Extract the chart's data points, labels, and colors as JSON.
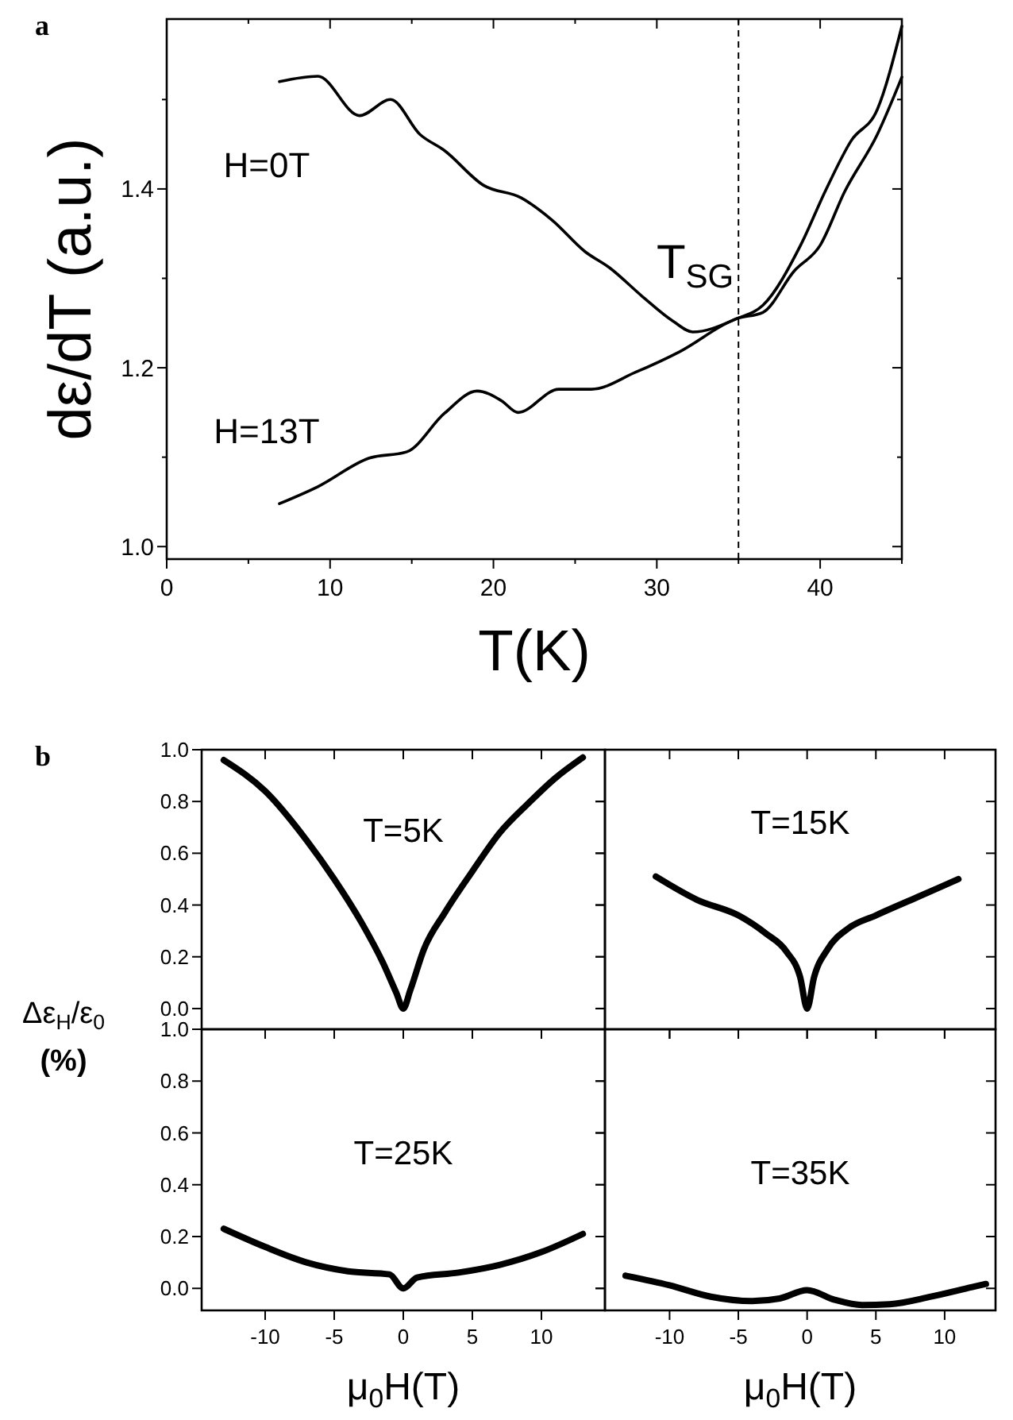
{
  "chart_data": [
    {
      "type": "line",
      "title": "a",
      "xlabel": "T(K)",
      "ylabel": "dε/dT (a.u.)",
      "xlim": [
        0,
        45
      ],
      "ylim": [
        0.986,
        1.59
      ],
      "xticks": [
        0,
        {
          "value": 5,
          "label": null
        },
        10,
        {
          "value": 15,
          "label": null
        },
        20,
        {
          "value": 25,
          "label": null
        },
        30,
        {
          "value": 35,
          "label": null
        },
        40,
        {
          "value": 45,
          "label": null
        }
      ],
      "yticks": [
        {
          "value": 1.0,
          "label": "1.0"
        },
        {
          "value": 1.1,
          "label": null
        },
        {
          "value": 1.2,
          "label": "1.2"
        },
        {
          "value": 1.3,
          "label": null
        },
        {
          "value": 1.4,
          "label": "1.4"
        },
        {
          "value": 1.5,
          "label": null
        }
      ],
      "grid": false,
      "line_style": "solid",
      "marker": "none",
      "ref_lines": [
        {
          "axis": "x",
          "value": 35,
          "label": "T$_{SG}$",
          "line_style": "dashed",
          "color": "#000000"
        }
      ],
      "series": [
        {
          "name": "H=0T",
          "color": "#000000",
          "x": [
            6.9,
            9.25,
            11.8,
            13.7,
            15.5,
            17,
            19.4,
            21.7,
            23.6,
            25.6,
            27.1,
            29.1,
            31,
            32.2,
            34.9,
            36.5,
            38.8,
            40.3,
            41.9,
            43.5,
            45
          ],
          "values": [
            1.52,
            1.526,
            1.482,
            1.5,
            1.461,
            1.443,
            1.404,
            1.39,
            1.365,
            1.33,
            1.312,
            1.28,
            1.252,
            1.24,
            1.255,
            1.27,
            1.337,
            1.397,
            1.454,
            1.489,
            1.582
          ]
        },
        {
          "name": "H=13T",
          "color": "#000000",
          "x": [
            6.9,
            9.25,
            12.4,
            14.7,
            17,
            19,
            20.5,
            21.5,
            24,
            26,
            28.7,
            31.4,
            34.9,
            36.5,
            38.4,
            40,
            41.5,
            43.5,
            45
          ],
          "values": [
            1.048,
            1.067,
            1.099,
            1.106,
            1.149,
            1.174,
            1.163,
            1.15,
            1.176,
            1.176,
            1.195,
            1.218,
            1.255,
            1.262,
            1.308,
            1.337,
            1.397,
            1.461,
            1.525
          ]
        }
      ]
    },
    {
      "type": "line",
      "title": "b",
      "ylabel": "Δε$_{H}$/ε$_{0}$ (%)",
      "annotations": [
        "T=5K"
      ],
      "xlim": [
        -14.6,
        14.6
      ],
      "ylim": [
        -0.08,
        1.0
      ],
      "tick_labels": "y",
      "xticks": [
        -10,
        -5,
        0,
        5,
        10
      ],
      "yticks": [
        {
          "value": 0,
          "label": "0.0"
        },
        0.2,
        0.4,
        0.6,
        0.8,
        {
          "value": 1,
          "label": "1.0"
        }
      ],
      "grid": false,
      "marker": "none",
      "series": [
        {
          "color": "#000000",
          "x": [
            -13,
            -10,
            -7,
            -5,
            -3,
            -1.5,
            -0.5,
            0,
            0.5,
            1.5,
            3,
            5,
            7,
            9,
            11,
            13
          ],
          "values": [
            0.96,
            0.84,
            0.65,
            0.5,
            0.33,
            0.18,
            0.06,
            0,
            0.07,
            0.23,
            0.37,
            0.53,
            0.68,
            0.79,
            0.89,
            0.97
          ]
        }
      ]
    },
    {
      "type": "line",
      "annotations": [
        "T=15K"
      ],
      "xlim": [
        -14.7,
        13.7
      ],
      "ylim": [
        -0.08,
        1.0
      ],
      "tick_labels": false,
      "xticks": [
        -10,
        -5,
        0,
        5,
        10
      ],
      "yticks": [
        0,
        0.2,
        0.4,
        0.6,
        0.8,
        1
      ],
      "grid": false,
      "marker": "none",
      "series": [
        {
          "color": "#000000",
          "x": [
            -11,
            -8,
            -5,
            -3,
            -1.5,
            -0.5,
            0,
            0.5,
            1.5,
            3,
            5,
            8,
            11
          ],
          "values": [
            0.51,
            0.42,
            0.36,
            0.29,
            0.22,
            0.12,
            0,
            0.12,
            0.23,
            0.31,
            0.36,
            0.43,
            0.5
          ]
        }
      ]
    },
    {
      "type": "line",
      "xlabel": "μ$_{0}$H(T)",
      "annotations": [
        "T=25K"
      ],
      "xlim": [
        -14.6,
        14.6
      ],
      "ylim": [
        -0.085,
        1.0
      ],
      "xticks": [
        -10,
        -5,
        0,
        5,
        10
      ],
      "yticks": [
        {
          "value": 0,
          "label": "0.0"
        },
        0.2,
        0.4,
        0.6,
        0.8,
        {
          "value": 1,
          "label": "1.0"
        }
      ],
      "grid": false,
      "marker": "none",
      "series": [
        {
          "color": "#000000",
          "x": [
            -13,
            -10,
            -7,
            -4,
            -1,
            0,
            1,
            4,
            7,
            10,
            13
          ],
          "values": [
            0.23,
            0.16,
            0.1,
            0.066,
            0.054,
            0,
            0.042,
            0.061,
            0.091,
            0.14,
            0.21
          ]
        }
      ]
    },
    {
      "type": "line",
      "xlabel": "μ$_{0}$H(T)",
      "annotations": [
        "T=35K"
      ],
      "xlim": [
        -14.7,
        13.7
      ],
      "ylim": [
        -0.085,
        1.0
      ],
      "tick_labels": "x",
      "xticks": [
        -10,
        -5,
        0,
        5,
        10
      ],
      "yticks": [
        0,
        0.2,
        0.4,
        0.6,
        0.8,
        1
      ],
      "grid": false,
      "marker": "none",
      "series": [
        {
          "color": "#000000",
          "x": [
            -13.2,
            -10,
            -7,
            -4,
            -2,
            0,
            2,
            4,
            6,
            9,
            12,
            13
          ],
          "values": [
            0.049,
            0.012,
            -0.032,
            -0.049,
            -0.039,
            -0.007,
            -0.044,
            -0.064,
            -0.061,
            -0.032,
            0.005,
            0.017
          ]
        }
      ]
    }
  ]
}
